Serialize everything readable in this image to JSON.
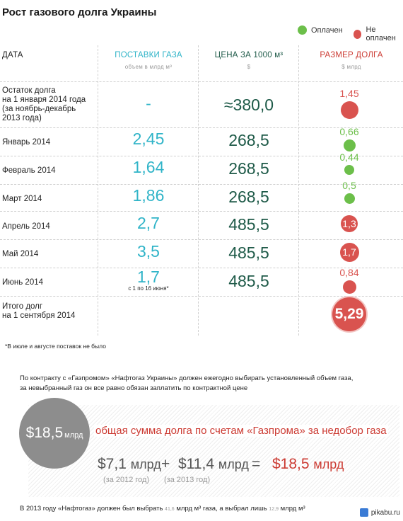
{
  "title": "Рост газового долга Украины",
  "legend": {
    "paid": "Оплачен",
    "unpaid": "Не оплачен",
    "paid_color": "#6cbf4a",
    "unpaid_color": "#d9534f"
  },
  "headers": {
    "date": "ДАТА",
    "gas": "ПОСТАВКИ ГАЗА",
    "gas_sub": "объем в млрд м³",
    "price": "ЦЕНА ЗА 1000 м³",
    "price_sub": "$",
    "debt": "РАЗМЕР ДОЛГА",
    "debt_sub": "$ млрд"
  },
  "chart_data": {
    "type": "table",
    "title": "Рост газового долга Украины",
    "columns": [
      "ДАТА",
      "ПОСТАВКИ ГАЗА",
      "ЦЕНА ЗА 1000 м³",
      "РАЗМЕР ДОЛГА"
    ],
    "rows": [
      {
        "label": "Остаток долга на 1 января 2014 года (за ноябрь-декабрь 2013 года)",
        "gas": "-",
        "price": "≈380,0",
        "debt": "1,45",
        "debt_value": 1.45,
        "status": "unpaid"
      },
      {
        "label": "Январь 2014",
        "gas": "2,45",
        "price": "268,5",
        "debt": "0,66",
        "debt_value": 0.66,
        "status": "paid"
      },
      {
        "label": "Февраль 2014",
        "gas": "1,64",
        "price": "268,5",
        "debt": "0,44",
        "debt_value": 0.44,
        "status": "paid"
      },
      {
        "label": "Март 2014",
        "gas": "1,86",
        "price": "268,5",
        "debt": "0,5",
        "debt_value": 0.5,
        "status": "paid"
      },
      {
        "label": "Апрель 2014",
        "gas": "2,7",
        "price": "485,5",
        "debt": "1,3",
        "debt_value": 1.3,
        "status": "unpaid"
      },
      {
        "label": "Май 2014",
        "gas": "3,5",
        "price": "485,5",
        "debt": "1,7",
        "debt_value": 1.7,
        "status": "unpaid"
      },
      {
        "label": "Июнь 2014",
        "gas": "1,7",
        "gas_note": "с 1 по 16 июня*",
        "price": "485,5",
        "debt": "0,84",
        "debt_value": 0.84,
        "status": "unpaid"
      },
      {
        "label": "Итого долг на 1 сентября 2014",
        "gas": "",
        "price": "",
        "debt": "5,29",
        "debt_value": 5.29,
        "status": "unpaid"
      }
    ]
  },
  "row_lines": {
    "r0": [
      "Остаток долга",
      "на 1 января 2014 года",
      "(за ноябрь-декабрь",
      "2013 года)"
    ],
    "r7": [
      "Итого долг",
      "на 1 сентября 2014"
    ]
  },
  "footnote": "*В июле и августе поставок не было",
  "contract": {
    "line1": "По контракту с «Газпромом» «Нафтогаз Украины» должен ежегодно выбирать установленный объем газа,",
    "line2": "за невыбранный газ он все равно обязан заплатить по контрактной цене"
  },
  "total": {
    "amount": "$18,5",
    "unit": "млрд",
    "description": "общая сумма долга по счетам «Газпрома» за недобор газа",
    "part1": "$7,1",
    "part2": "$11,4",
    "result": "$18,5",
    "mlrd": "млрд",
    "plus": "+",
    "equals": "=",
    "year1": "(за 2012 год)",
    "year2": "(за 2013 год)"
  },
  "bottom": {
    "prefix": "В 2013 году «Нафтогаз» должен был выбрать",
    "v1": "41,6",
    "mid": "млрд м³ газа, а выбрал лишь",
    "v2": "12,9",
    "suffix": "млрд м³"
  },
  "watermark": "pikabu.ru"
}
